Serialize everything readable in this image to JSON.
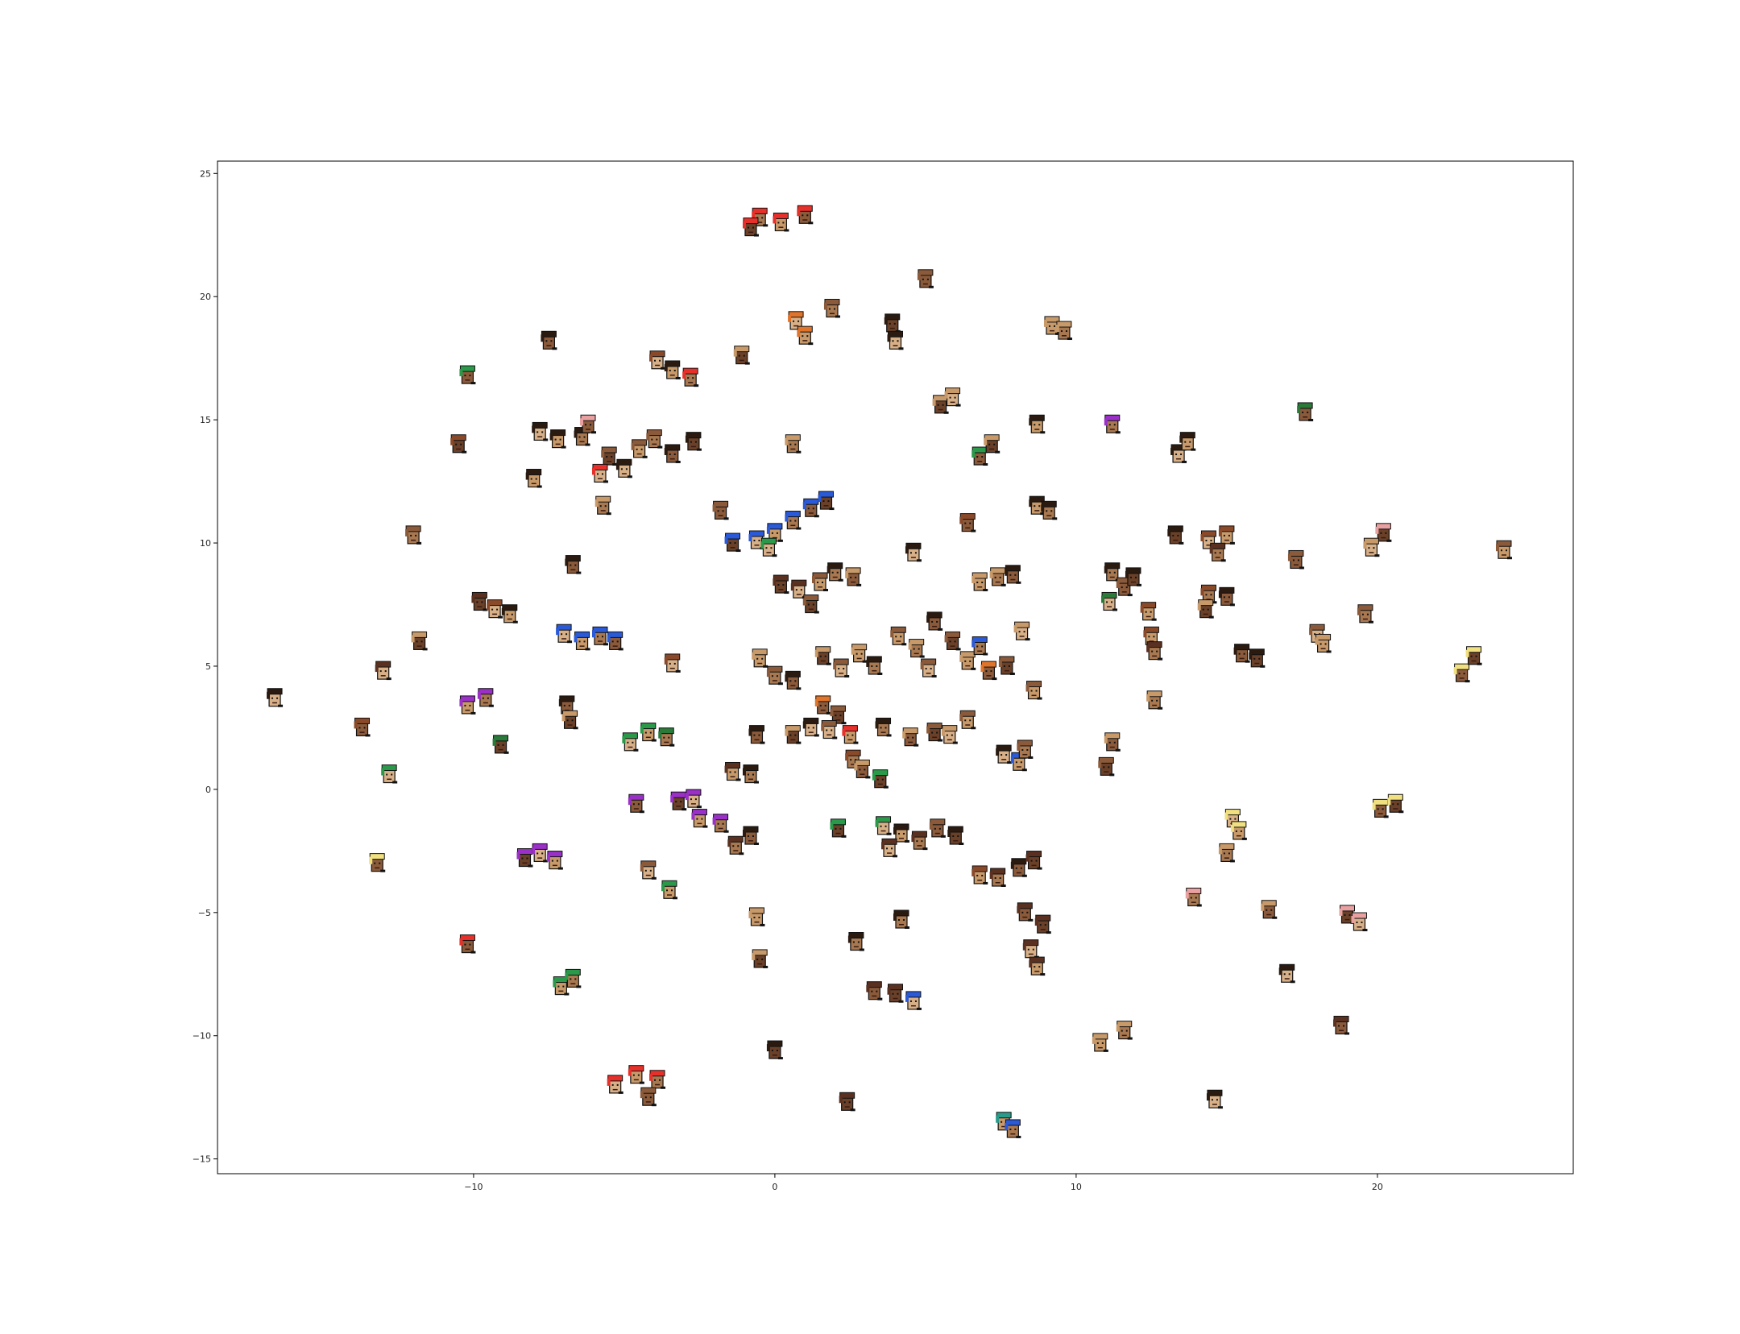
{
  "chart_data": {
    "type": "scatter",
    "title": "",
    "xlabel": "",
    "ylabel": "",
    "xlim": [
      -18.5,
      26.5
    ],
    "ylim": [
      -15.6,
      25.5
    ],
    "xticks": [
      -10,
      0,
      10,
      20
    ],
    "yticks": [
      -15,
      -10,
      -5,
      0,
      5,
      10,
      15,
      20,
      25
    ],
    "xtick_labels": [
      "−10",
      "0",
      "10",
      "20"
    ],
    "ytick_labels": [
      "−15",
      "−10",
      "−5",
      "0",
      "5",
      "10",
      "15",
      "20",
      "25"
    ],
    "grid": false,
    "legend": "none",
    "marker": "pixel-art character portrait thumbnails",
    "points": [
      {
        "x": 0.2,
        "y": 23.0,
        "c": "#e8302a"
      },
      {
        "x": -0.5,
        "y": 23.2,
        "c": "#e8302a"
      },
      {
        "x": 1.0,
        "y": 23.3,
        "c": "#e8302a"
      },
      {
        "x": -0.8,
        "y": 22.8,
        "c": "#e8302a"
      },
      {
        "x": 0.7,
        "y": 19.0,
        "c": "#e0742a"
      },
      {
        "x": 1.0,
        "y": 18.4,
        "c": "#e0742a"
      },
      {
        "x": 1.9,
        "y": 19.5,
        "c": "#8a5a3a"
      },
      {
        "x": 5.0,
        "y": 20.7,
        "c": "#8a5a3a"
      },
      {
        "x": 3.9,
        "y": 18.9,
        "c": "#2a1a10"
      },
      {
        "x": 4.0,
        "y": 18.2,
        "c": "#2a1a10"
      },
      {
        "x": 9.2,
        "y": 18.8,
        "c": "#c89a6a"
      },
      {
        "x": 9.6,
        "y": 18.6,
        "c": "#c89a6a"
      },
      {
        "x": -7.5,
        "y": 18.2,
        "c": "#2a1a10"
      },
      {
        "x": -1.1,
        "y": 17.6,
        "c": "#c89a6a"
      },
      {
        "x": -3.9,
        "y": 17.4,
        "c": "#8a4a2a"
      },
      {
        "x": -3.4,
        "y": 17.0,
        "c": "#2a1a10"
      },
      {
        "x": -2.8,
        "y": 16.7,
        "c": "#e8302a"
      },
      {
        "x": -10.2,
        "y": 16.8,
        "c": "#2a9a4a"
      },
      {
        "x": 5.5,
        "y": 15.6,
        "c": "#c89a6a"
      },
      {
        "x": 5.9,
        "y": 15.9,
        "c": "#c89a6a"
      },
      {
        "x": 8.7,
        "y": 14.8,
        "c": "#2a1a10"
      },
      {
        "x": 11.2,
        "y": 14.8,
        "c": "#9a30c8"
      },
      {
        "x": 17.6,
        "y": 15.3,
        "c": "#2a7a3a"
      },
      {
        "x": -10.5,
        "y": 14.0,
        "c": "#8a4a2a"
      },
      {
        "x": -7.8,
        "y": 14.5,
        "c": "#2a1a10"
      },
      {
        "x": -7.2,
        "y": 14.2,
        "c": "#2a1a10"
      },
      {
        "x": -6.4,
        "y": 14.3,
        "c": "#2a1a10"
      },
      {
        "x": -6.2,
        "y": 14.8,
        "c": "#e8a0a0"
      },
      {
        "x": -5.5,
        "y": 13.5,
        "c": "#8a5a3a"
      },
      {
        "x": -5.0,
        "y": 13.0,
        "c": "#2a1a10"
      },
      {
        "x": -4.5,
        "y": 13.8,
        "c": "#8a5a3a"
      },
      {
        "x": -4.0,
        "y": 14.2,
        "c": "#8a5a3a"
      },
      {
        "x": -3.4,
        "y": 13.6,
        "c": "#2a1a10"
      },
      {
        "x": -2.7,
        "y": 14.1,
        "c": "#2a1a10"
      },
      {
        "x": -5.8,
        "y": 12.8,
        "c": "#e8302a"
      },
      {
        "x": -8.0,
        "y": 12.6,
        "c": "#2a1a10"
      },
      {
        "x": 0.6,
        "y": 14.0,
        "c": "#c89a6a"
      },
      {
        "x": 6.8,
        "y": 13.5,
        "c": "#2a9a4a"
      },
      {
        "x": 7.2,
        "y": 14.0,
        "c": "#c89a6a"
      },
      {
        "x": 13.4,
        "y": 13.6,
        "c": "#2a1a10"
      },
      {
        "x": 13.7,
        "y": 14.1,
        "c": "#2a1a10"
      },
      {
        "x": -5.7,
        "y": 11.5,
        "c": "#c89a6a"
      },
      {
        "x": -1.8,
        "y": 11.3,
        "c": "#8a5a3a"
      },
      {
        "x": -1.4,
        "y": 10.0,
        "c": "#2a5ad8"
      },
      {
        "x": -0.6,
        "y": 10.1,
        "c": "#2a5ad8"
      },
      {
        "x": 0.0,
        "y": 10.4,
        "c": "#2a5ad8"
      },
      {
        "x": 0.6,
        "y": 10.9,
        "c": "#2a5ad8"
      },
      {
        "x": 1.2,
        "y": 11.4,
        "c": "#2a5ad8"
      },
      {
        "x": 1.7,
        "y": 11.7,
        "c": "#2a5ad8"
      },
      {
        "x": -0.2,
        "y": 9.8,
        "c": "#2a9a4a"
      },
      {
        "x": 8.7,
        "y": 11.5,
        "c": "#2a1a10"
      },
      {
        "x": 9.1,
        "y": 11.3,
        "c": "#2a1a10"
      },
      {
        "x": 6.4,
        "y": 10.8,
        "c": "#8a4a2a"
      },
      {
        "x": 13.3,
        "y": 10.3,
        "c": "#2a1a10"
      },
      {
        "x": 14.4,
        "y": 10.1,
        "c": "#8a4a2a"
      },
      {
        "x": 15.0,
        "y": 10.3,
        "c": "#8a4a2a"
      },
      {
        "x": 14.7,
        "y": 9.6,
        "c": "#5a3020"
      },
      {
        "x": 17.3,
        "y": 9.3,
        "c": "#8a5a3a"
      },
      {
        "x": 20.2,
        "y": 10.4,
        "c": "#e8a0a0"
      },
      {
        "x": 19.8,
        "y": 9.8,
        "c": "#c89a6a"
      },
      {
        "x": 24.2,
        "y": 9.7,
        "c": "#8a5a3a"
      },
      {
        "x": -12.0,
        "y": 10.3,
        "c": "#8a5a3a"
      },
      {
        "x": -6.7,
        "y": 9.1,
        "c": "#2a1a10"
      },
      {
        "x": 0.2,
        "y": 8.3,
        "c": "#5a3020"
      },
      {
        "x": 0.8,
        "y": 8.1,
        "c": "#5a3020"
      },
      {
        "x": 1.5,
        "y": 8.4,
        "c": "#8a5a3a"
      },
      {
        "x": 2.0,
        "y": 8.8,
        "c": "#2a1a10"
      },
      {
        "x": 2.6,
        "y": 8.6,
        "c": "#c89a6a"
      },
      {
        "x": 1.2,
        "y": 7.5,
        "c": "#8a5a3a"
      },
      {
        "x": 4.6,
        "y": 9.6,
        "c": "#2a1a10"
      },
      {
        "x": 6.8,
        "y": 8.4,
        "c": "#c89a6a"
      },
      {
        "x": 7.4,
        "y": 8.6,
        "c": "#c89a6a"
      },
      {
        "x": 7.9,
        "y": 8.7,
        "c": "#2a1a10"
      },
      {
        "x": -9.8,
        "y": 7.6,
        "c": "#5a3020"
      },
      {
        "x": -9.3,
        "y": 7.3,
        "c": "#8a4a2a"
      },
      {
        "x": -8.8,
        "y": 7.1,
        "c": "#2a1a10"
      },
      {
        "x": 11.2,
        "y": 8.8,
        "c": "#2a1a10"
      },
      {
        "x": 11.6,
        "y": 8.2,
        "c": "#8a5a3a"
      },
      {
        "x": 11.9,
        "y": 8.6,
        "c": "#2a1a10"
      },
      {
        "x": 11.1,
        "y": 7.6,
        "c": "#2a7a3a"
      },
      {
        "x": 12.4,
        "y": 7.2,
        "c": "#8a4a2a"
      },
      {
        "x": 14.4,
        "y": 7.9,
        "c": "#8a4a2a"
      },
      {
        "x": 15.0,
        "y": 7.8,
        "c": "#2a1a10"
      },
      {
        "x": 14.3,
        "y": 7.3,
        "c": "#c89a6a"
      },
      {
        "x": -7.0,
        "y": 6.3,
        "c": "#2a5ad8"
      },
      {
        "x": -6.4,
        "y": 6.0,
        "c": "#2a5ad8"
      },
      {
        "x": -5.8,
        "y": 6.2,
        "c": "#2a5ad8"
      },
      {
        "x": -5.3,
        "y": 6.0,
        "c": "#2a5ad8"
      },
      {
        "x": -11.8,
        "y": 6.0,
        "c": "#c89a6a"
      },
      {
        "x": -13.0,
        "y": 4.8,
        "c": "#5a3020"
      },
      {
        "x": 4.1,
        "y": 6.2,
        "c": "#8a5a3a"
      },
      {
        "x": 4.7,
        "y": 5.7,
        "c": "#c89a6a"
      },
      {
        "x": 5.3,
        "y": 6.8,
        "c": "#2a1a10"
      },
      {
        "x": 5.9,
        "y": 6.0,
        "c": "#8a5a3a"
      },
      {
        "x": 5.1,
        "y": 4.9,
        "c": "#8a5a3a"
      },
      {
        "x": 6.4,
        "y": 5.2,
        "c": "#c89a6a"
      },
      {
        "x": 6.8,
        "y": 5.8,
        "c": "#2a5ad8"
      },
      {
        "x": 7.1,
        "y": 4.8,
        "c": "#e0742a"
      },
      {
        "x": 7.7,
        "y": 5.0,
        "c": "#8a5a3a"
      },
      {
        "x": 8.2,
        "y": 6.4,
        "c": "#c89a6a"
      },
      {
        "x": 12.5,
        "y": 6.2,
        "c": "#8a4a2a"
      },
      {
        "x": 12.6,
        "y": 5.6,
        "c": "#5a3020"
      },
      {
        "x": 15.5,
        "y": 5.5,
        "c": "#2a1a10"
      },
      {
        "x": 16.0,
        "y": 5.3,
        "c": "#2a1a10"
      },
      {
        "x": 18.0,
        "y": 6.3,
        "c": "#8a5a3a"
      },
      {
        "x": 18.2,
        "y": 5.9,
        "c": "#c89a6a"
      },
      {
        "x": 19.6,
        "y": 7.1,
        "c": "#8a5a3a"
      },
      {
        "x": 22.8,
        "y": 4.7,
        "c": "#f0e080"
      },
      {
        "x": 23.2,
        "y": 5.4,
        "c": "#f0e080"
      },
      {
        "x": -16.6,
        "y": 3.7,
        "c": "#2a1a10"
      },
      {
        "x": -10.2,
        "y": 3.4,
        "c": "#9a30c8"
      },
      {
        "x": -9.6,
        "y": 3.7,
        "c": "#9a30c8"
      },
      {
        "x": -6.9,
        "y": 3.4,
        "c": "#2a1a10"
      },
      {
        "x": -6.8,
        "y": 2.8,
        "c": "#c89a6a"
      },
      {
        "x": -3.4,
        "y": 5.1,
        "c": "#8a4a2a"
      },
      {
        "x": -0.5,
        "y": 5.3,
        "c": "#c89a6a"
      },
      {
        "x": 0.0,
        "y": 4.6,
        "c": "#8a5a3a"
      },
      {
        "x": 0.6,
        "y": 4.4,
        "c": "#2a1a10"
      },
      {
        "x": 1.6,
        "y": 5.4,
        "c": "#c89a6a"
      },
      {
        "x": 2.2,
        "y": 4.9,
        "c": "#8a5a3a"
      },
      {
        "x": 2.8,
        "y": 5.5,
        "c": "#c89a6a"
      },
      {
        "x": 3.3,
        "y": 5.0,
        "c": "#2a1a10"
      },
      {
        "x": 1.6,
        "y": 3.4,
        "c": "#e0742a"
      },
      {
        "x": 2.1,
        "y": 3.0,
        "c": "#8a5a3a"
      },
      {
        "x": 1.2,
        "y": 2.5,
        "c": "#2a1a10"
      },
      {
        "x": 8.6,
        "y": 4.0,
        "c": "#8a5a3a"
      },
      {
        "x": 12.6,
        "y": 3.6,
        "c": "#c89a6a"
      },
      {
        "x": -13.7,
        "y": 2.5,
        "c": "#8a4a2a"
      },
      {
        "x": -9.1,
        "y": 1.8,
        "c": "#2a7a3a"
      },
      {
        "x": -4.8,
        "y": 1.9,
        "c": "#2a9a4a"
      },
      {
        "x": -4.2,
        "y": 2.3,
        "c": "#2a9a4a"
      },
      {
        "x": -3.6,
        "y": 2.1,
        "c": "#2a7a3a"
      },
      {
        "x": -0.6,
        "y": 2.2,
        "c": "#2a1a10"
      },
      {
        "x": 0.6,
        "y": 2.2,
        "c": "#c89a6a"
      },
      {
        "x": 1.8,
        "y": 2.4,
        "c": "#8a5a3a"
      },
      {
        "x": 2.5,
        "y": 2.2,
        "c": "#e8302a"
      },
      {
        "x": 3.6,
        "y": 2.5,
        "c": "#2a1a10"
      },
      {
        "x": 4.5,
        "y": 2.1,
        "c": "#c89a6a"
      },
      {
        "x": 5.3,
        "y": 2.3,
        "c": "#8a5a3a"
      },
      {
        "x": 5.8,
        "y": 2.2,
        "c": "#c89a6a"
      },
      {
        "x": 6.4,
        "y": 2.8,
        "c": "#8a5a3a"
      },
      {
        "x": 2.6,
        "y": 1.2,
        "c": "#8a4a2a"
      },
      {
        "x": 2.9,
        "y": 0.8,
        "c": "#c89a6a"
      },
      {
        "x": 3.5,
        "y": 0.4,
        "c": "#2a9a4a"
      },
      {
        "x": 7.6,
        "y": 1.4,
        "c": "#2a1a10"
      },
      {
        "x": 8.1,
        "y": 1.1,
        "c": "#2a5ad8"
      },
      {
        "x": 8.3,
        "y": 1.6,
        "c": "#8a5a3a"
      },
      {
        "x": 11.2,
        "y": 1.9,
        "c": "#c89a6a"
      },
      {
        "x": 11.0,
        "y": 0.9,
        "c": "#8a5a3a"
      },
      {
        "x": -12.8,
        "y": 0.6,
        "c": "#2a9a4a"
      },
      {
        "x": -1.4,
        "y": 0.7,
        "c": "#5a3020"
      },
      {
        "x": -0.8,
        "y": 0.6,
        "c": "#2a1a10"
      },
      {
        "x": -4.6,
        "y": -0.6,
        "c": "#9a30c8"
      },
      {
        "x": -3.2,
        "y": -0.5,
        "c": "#9a30c8"
      },
      {
        "x": -2.7,
        "y": -0.4,
        "c": "#9a30c8"
      },
      {
        "x": -2.5,
        "y": -1.2,
        "c": "#9a30c8"
      },
      {
        "x": -1.8,
        "y": -1.4,
        "c": "#9a30c8"
      },
      {
        "x": 20.1,
        "y": -0.8,
        "c": "#f0e080"
      },
      {
        "x": 20.6,
        "y": -0.6,
        "c": "#f0e080"
      },
      {
        "x": 15.2,
        "y": -1.2,
        "c": "#f0e080"
      },
      {
        "x": 15.4,
        "y": -1.7,
        "c": "#f0e080"
      },
      {
        "x": 15.0,
        "y": -2.6,
        "c": "#c89a6a"
      },
      {
        "x": -13.2,
        "y": -3.0,
        "c": "#f0e080"
      },
      {
        "x": -8.3,
        "y": -2.8,
        "c": "#9a30c8"
      },
      {
        "x": -7.8,
        "y": -2.6,
        "c": "#9a30c8"
      },
      {
        "x": -7.3,
        "y": -2.9,
        "c": "#9a30c8"
      },
      {
        "x": -1.3,
        "y": -2.3,
        "c": "#5a3020"
      },
      {
        "x": -0.8,
        "y": -1.9,
        "c": "#2a1a10"
      },
      {
        "x": 2.1,
        "y": -1.6,
        "c": "#2a9a4a"
      },
      {
        "x": 3.6,
        "y": -1.5,
        "c": "#2a9a4a"
      },
      {
        "x": 4.2,
        "y": -1.8,
        "c": "#2a1a10"
      },
      {
        "x": 4.8,
        "y": -2.1,
        "c": "#5a3020"
      },
      {
        "x": 5.4,
        "y": -1.6,
        "c": "#8a5a3a"
      },
      {
        "x": 6.0,
        "y": -1.9,
        "c": "#2a1a10"
      },
      {
        "x": 3.8,
        "y": -2.4,
        "c": "#5a3020"
      },
      {
        "x": 6.8,
        "y": -3.5,
        "c": "#8a4a2a"
      },
      {
        "x": 7.4,
        "y": -3.6,
        "c": "#5a3020"
      },
      {
        "x": 8.1,
        "y": -3.2,
        "c": "#2a1a10"
      },
      {
        "x": 8.6,
        "y": -2.9,
        "c": "#5a3020"
      },
      {
        "x": -4.2,
        "y": -3.3,
        "c": "#8a5a3a"
      },
      {
        "x": -3.5,
        "y": -4.1,
        "c": "#2a9a4a"
      },
      {
        "x": 13.9,
        "y": -4.4,
        "c": "#e8a0a0"
      },
      {
        "x": 16.4,
        "y": -4.9,
        "c": "#c89a6a"
      },
      {
        "x": 19.0,
        "y": -5.1,
        "c": "#e8a0a0"
      },
      {
        "x": 19.4,
        "y": -5.4,
        "c": "#e8a0a0"
      },
      {
        "x": -0.6,
        "y": -5.2,
        "c": "#c89a6a"
      },
      {
        "x": 4.2,
        "y": -5.3,
        "c": "#2a1a10"
      },
      {
        "x": 8.3,
        "y": -5.0,
        "c": "#5a3020"
      },
      {
        "x": 8.9,
        "y": -5.5,
        "c": "#5a3020"
      },
      {
        "x": 8.5,
        "y": -6.5,
        "c": "#5a3020"
      },
      {
        "x": 8.7,
        "y": -7.2,
        "c": "#5a3020"
      },
      {
        "x": 2.7,
        "y": -6.2,
        "c": "#2a1a10"
      },
      {
        "x": -10.2,
        "y": -6.3,
        "c": "#e8302a"
      },
      {
        "x": -0.5,
        "y": -6.9,
        "c": "#c89a6a"
      },
      {
        "x": 17.0,
        "y": -7.5,
        "c": "#2a1a10"
      },
      {
        "x": -7.1,
        "y": -8.0,
        "c": "#2a9a4a"
      },
      {
        "x": -6.7,
        "y": -7.7,
        "c": "#2a9a4a"
      },
      {
        "x": 3.3,
        "y": -8.2,
        "c": "#5a3020"
      },
      {
        "x": 4.0,
        "y": -8.3,
        "c": "#5a3020"
      },
      {
        "x": 4.6,
        "y": -8.6,
        "c": "#2a5ad8"
      },
      {
        "x": 10.8,
        "y": -10.3,
        "c": "#c89a6a"
      },
      {
        "x": 11.6,
        "y": -9.8,
        "c": "#c89a6a"
      },
      {
        "x": 18.8,
        "y": -9.6,
        "c": "#5a3020"
      },
      {
        "x": 0.0,
        "y": -10.6,
        "c": "#2a1a10"
      },
      {
        "x": -5.3,
        "y": -12.0,
        "c": "#e8302a"
      },
      {
        "x": -4.6,
        "y": -11.6,
        "c": "#e8302a"
      },
      {
        "x": -3.9,
        "y": -11.8,
        "c": "#e8302a"
      },
      {
        "x": -4.2,
        "y": -12.5,
        "c": "#8a5a3a"
      },
      {
        "x": 2.4,
        "y": -12.7,
        "c": "#5a3020"
      },
      {
        "x": 14.6,
        "y": -12.6,
        "c": "#2a1a10"
      },
      {
        "x": 7.6,
        "y": -13.5,
        "c": "#2a9a8a"
      },
      {
        "x": 7.9,
        "y": -13.8,
        "c": "#2a5ad8"
      }
    ]
  }
}
